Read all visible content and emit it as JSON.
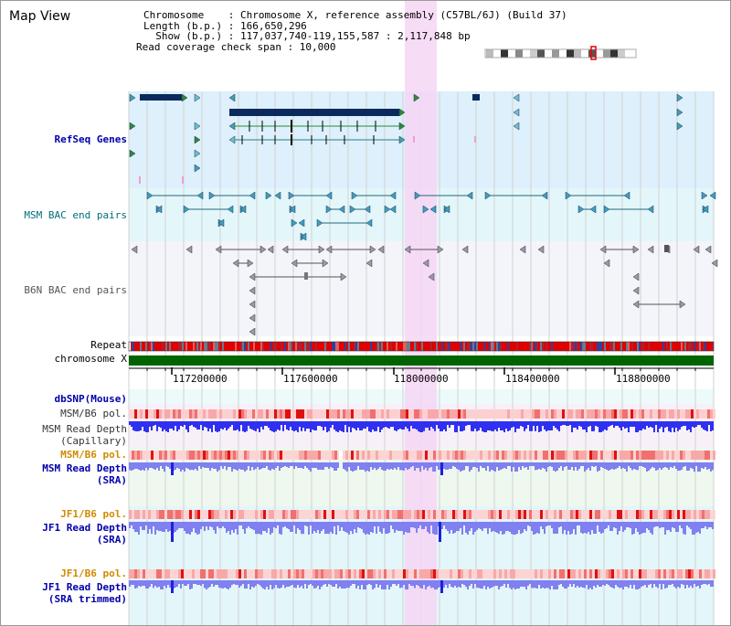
{
  "title": "Map View",
  "info": {
    "chromosome_label": "Chromosome    : Chromosome X, reference assembly (C57BL/6J) (Build 37)",
    "length_label": "Length (b.p.) : 166,650,296",
    "show_label": "  Show (b.p.) : 117,037,740-119,155,587 : 2,117,848 bp",
    "coverage_label": "Read coverage check span : 10,000"
  },
  "tracks": {
    "refseq": "RefSeq Genes",
    "msm_bac": "MSM BAC end pairs",
    "b6n_bac": "B6N BAC end pairs",
    "repeat": "Repeat",
    "chromosome": "chromosome X",
    "dbsnp": "dbSNP(Mouse)",
    "msm_b6_pol_1": "MSM/B6 pol.",
    "msm_read_depth_cap_1": "MSM Read Depth",
    "msm_read_depth_cap_2": "(Capillary)",
    "msm_b6_pol_2": "MSM/B6 pol.",
    "msm_read_depth_sra_1": "MSM Read Depth",
    "msm_read_depth_sra_2": "(SRA)",
    "jf1_b6_pol_1": "JF1/B6 pol.",
    "jf1_read_depth_sra_1": "JF1 Read Depth",
    "jf1_read_depth_sra_2": "(SRA)",
    "jf1_b6_pol_2": "JF1/B6 pol.",
    "jf1_read_depth_trim_1": "JF1 Read Depth",
    "jf1_read_depth_trim_2": "(SRA trimmed)"
  },
  "scale": {
    "ticks": [
      "117200000",
      "117600000",
      "118000000",
      "118400000",
      "118800000"
    ]
  },
  "colors": {
    "highlight": "#f6d6f4",
    "refseq_bg": "#ddf0fb",
    "bac_bg": "#e3f7fb",
    "gene_dark": "#0a2a5e",
    "chromosome": "#006400",
    "depth_blue": "#3030f0",
    "depth_light": "#8080f0"
  }
}
